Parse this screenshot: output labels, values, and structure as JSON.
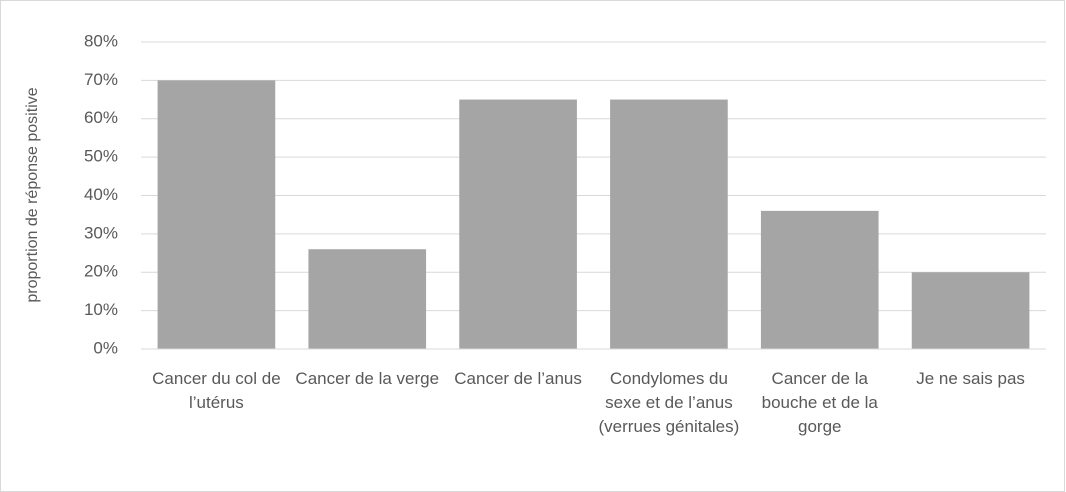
{
  "chart_data": {
    "type": "bar",
    "y_label": "proportion de réponse positive",
    "categories": [
      "Cancer du col de l’utérus",
      "Cancer de la verge",
      "Cancer de l’anus",
      "Condylomes du sexe et de l’anus (verrues génitales)",
      "Cancer de la bouche et de la gorge",
      "Je ne sais pas"
    ],
    "values": [
      70,
      26,
      65,
      65,
      36,
      20
    ],
    "color": "#a5a5a5",
    "ylim": [
      0,
      80
    ],
    "yticks": [
      {
        "value": 0,
        "label": "0%"
      },
      {
        "value": 10,
        "label": "10%"
      },
      {
        "value": 20,
        "label": "20%"
      },
      {
        "value": 30,
        "label": "30%"
      },
      {
        "value": 40,
        "label": "40%"
      },
      {
        "value": 50,
        "label": "50%"
      },
      {
        "value": 60,
        "label": "60%"
      },
      {
        "value": 70,
        "label": "70%"
      },
      {
        "value": 80,
        "label": "80%"
      }
    ],
    "grid": true
  }
}
